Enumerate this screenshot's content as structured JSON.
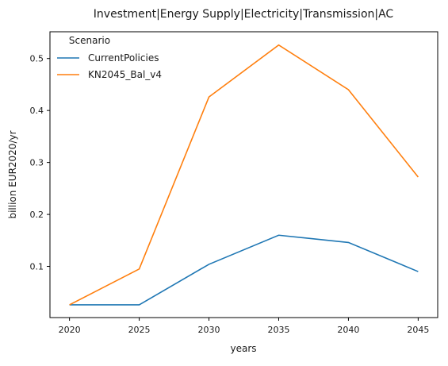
{
  "chart_data": {
    "type": "line",
    "title": "Investment|Energy Supply|Electricity|Transmission|AC",
    "xlabel": "years",
    "ylabel": "billion EUR2020/yr",
    "x": [
      2020,
      2025,
      2030,
      2035,
      2040,
      2045
    ],
    "xlim": [
      2018.6,
      2046.4
    ],
    "ylim": [
      0.0015,
      0.5515
    ],
    "xticks": [
      "2020",
      "2025",
      "2030",
      "2035",
      "2040",
      "2045"
    ],
    "yticks": [
      "0.1",
      "0.2",
      "0.3",
      "0.4",
      "0.5"
    ],
    "legend": {
      "title": "Scenario",
      "location": "top-left"
    },
    "grid": false,
    "series": [
      {
        "name": "CurrentPolicies",
        "color": "#1f77b4",
        "values": [
          0.026,
          0.026,
          0.104,
          0.16,
          0.146,
          0.09
        ]
      },
      {
        "name": "KN2045_Bal_v4",
        "color": "#ff7f0e",
        "values": [
          0.026,
          0.095,
          0.426,
          0.526,
          0.44,
          0.272
        ]
      }
    ]
  }
}
